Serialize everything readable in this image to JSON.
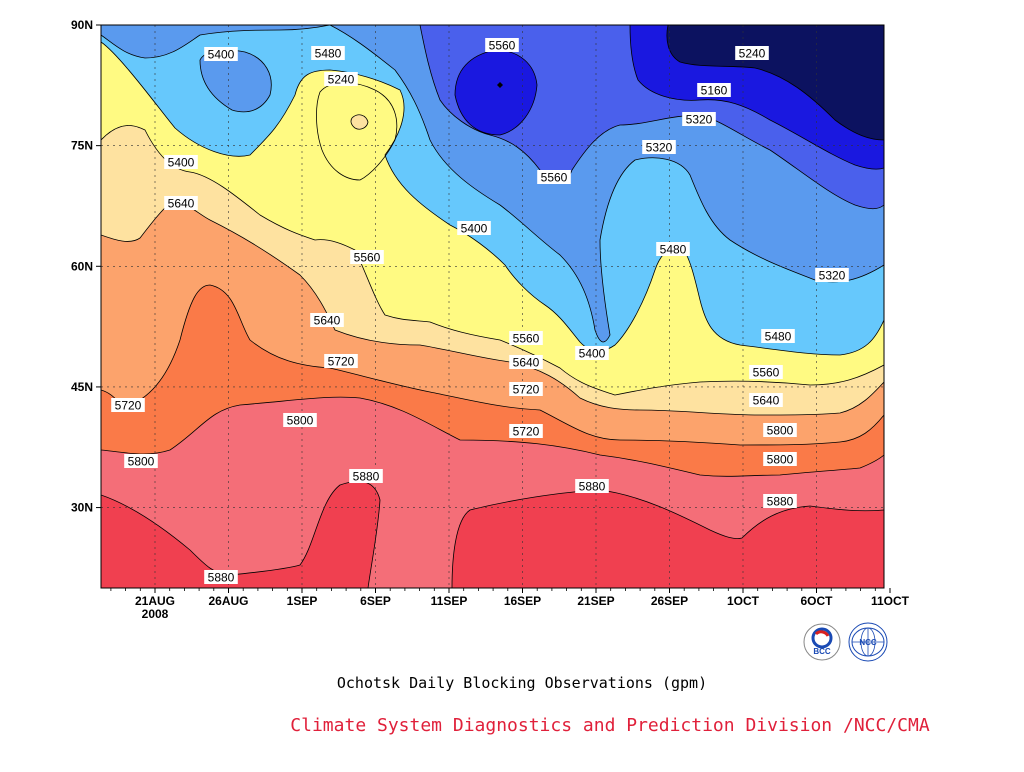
{
  "chart_data": {
    "type": "heatmap",
    "subtype": "filled-contour",
    "title": "Ochotsk Daily Blocking Observations (gpm)",
    "credit": "Climate System Diagnostics and Prediction Division /NCC/CMA",
    "x_ticks": [
      "21AUG\n2008",
      "26AUG",
      "1SEP",
      "6SEP",
      "11SEP",
      "16SEP",
      "21SEP",
      "26SEP",
      "1OCT",
      "6OCT",
      "11OCT"
    ],
    "y_ticks": [
      "30N",
      "45N",
      "60N",
      "75N",
      "90N"
    ],
    "ylim": [
      20,
      90
    ],
    "grid": true,
    "levels": [
      5160,
      5240,
      5320,
      5400,
      5480,
      5560,
      5640,
      5720,
      5800,
      5880
    ],
    "colors": {
      "above_5880": "#f04050",
      "5800_5880": "#f46e78",
      "5720_5800": "#fa7a48",
      "5640_5720": "#fca36c",
      "5560_5640": "#fee2a0",
      "5480_5560": "#fffa82",
      "5400_5480": "#66c8fc",
      "5320_5400": "#5a9aee",
      "5240_5320": "#4a60ec",
      "5160_5240": "#1a18e0",
      "below_5160": "#0c1260"
    },
    "contour_labels": [
      {
        "text": "5400"
      },
      {
        "text": "5480"
      },
      {
        "text": "5560"
      },
      {
        "text": "5240"
      },
      {
        "text": "5160"
      },
      {
        "text": "5240"
      },
      {
        "text": "5320"
      },
      {
        "text": "5400"
      },
      {
        "text": "5560"
      },
      {
        "text": "5320"
      },
      {
        "text": "5640"
      },
      {
        "text": "5400"
      },
      {
        "text": "5480"
      },
      {
        "text": "5560"
      },
      {
        "text": "5320"
      },
      {
        "text": "5640"
      },
      {
        "text": "5560"
      },
      {
        "text": "5400"
      },
      {
        "text": "5480"
      },
      {
        "text": "5720"
      },
      {
        "text": "5640"
      },
      {
        "text": "5560"
      },
      {
        "text": "5720"
      },
      {
        "text": "5640"
      },
      {
        "text": "5720"
      },
      {
        "text": "5800"
      },
      {
        "text": "5800"
      },
      {
        "text": "5720"
      },
      {
        "text": "5800"
      },
      {
        "text": "5800"
      },
      {
        "text": "5880"
      },
      {
        "text": "5880"
      },
      {
        "text": "5880"
      },
      {
        "text": "5880"
      }
    ],
    "logos": {
      "left": "BCC",
      "right": "NCC"
    }
  }
}
